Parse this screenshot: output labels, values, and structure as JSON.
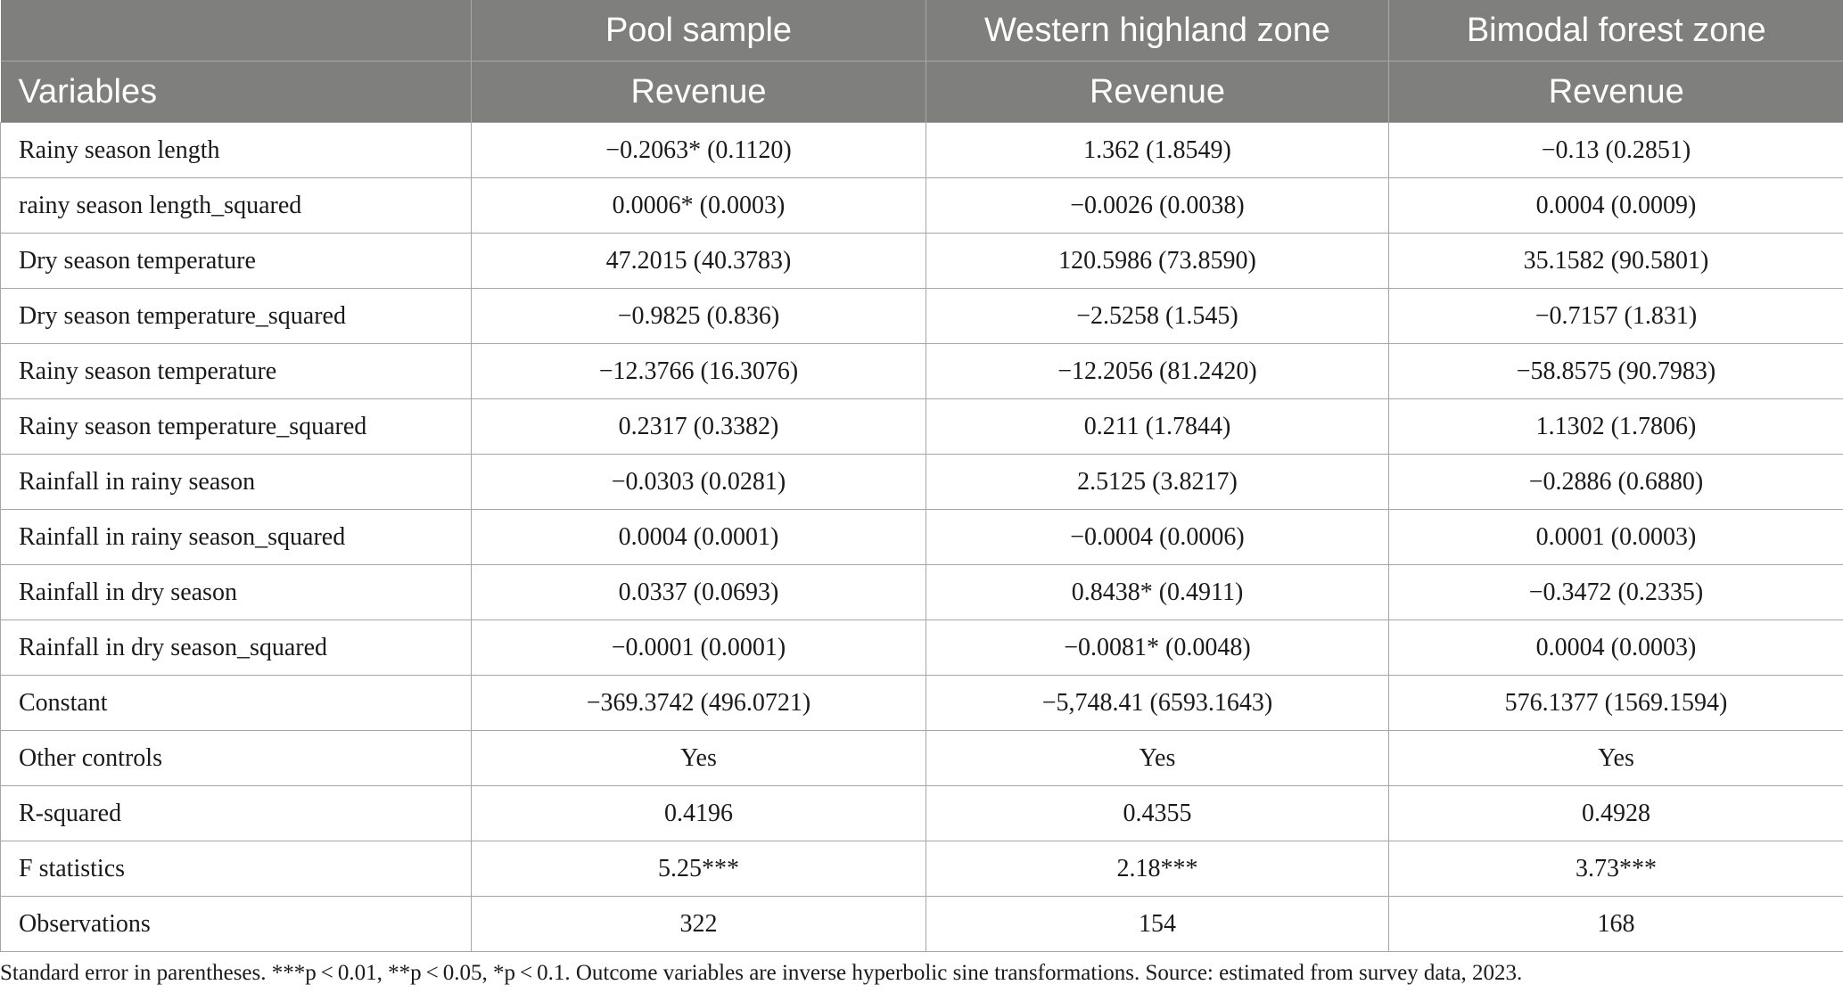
{
  "header": {
    "columns": [
      "",
      "Pool sample",
      "Western highland zone",
      "Bimodal forest zone"
    ],
    "subheader": [
      "Variables",
      "Revenue",
      "Revenue",
      "Revenue"
    ]
  },
  "rows": [
    {
      "variable": "Rainy season length",
      "values": [
        "−0.2063* (0.1120)",
        "1.362 (1.8549)",
        "−0.13 (0.2851)"
      ]
    },
    {
      "variable": "rainy season length_squared",
      "values": [
        "0.0006* (0.0003)",
        "−0.0026 (0.0038)",
        "0.0004 (0.0009)"
      ]
    },
    {
      "variable": "Dry season temperature",
      "values": [
        "47.2015 (40.3783)",
        "120.5986 (73.8590)",
        "35.1582 (90.5801)"
      ]
    },
    {
      "variable": "Dry season temperature_squared",
      "values": [
        "−0.9825 (0.836)",
        "−2.5258 (1.545)",
        "−0.7157 (1.831)"
      ]
    },
    {
      "variable": "Rainy season temperature",
      "values": [
        "−12.3766 (16.3076)",
        "−12.2056 (81.2420)",
        "−58.8575 (90.7983)"
      ]
    },
    {
      "variable": "Rainy season temperature_squared",
      "values": [
        "0.2317 (0.3382)",
        "0.211 (1.7844)",
        "1.1302 (1.7806)"
      ]
    },
    {
      "variable": "Rainfall in rainy season",
      "values": [
        "−0.0303 (0.0281)",
        "2.5125 (3.8217)",
        "−0.2886 (0.6880)"
      ]
    },
    {
      "variable": "Rainfall in rainy season_squared",
      "values": [
        "0.0004 (0.0001)",
        "−0.0004 (0.0006)",
        "0.0001 (0.0003)"
      ]
    },
    {
      "variable": "Rainfall in dry season",
      "values": [
        "0.0337 (0.0693)",
        "0.8438* (0.4911)",
        "−0.3472 (0.2335)"
      ]
    },
    {
      "variable": "Rainfall in dry season_squared",
      "values": [
        "−0.0001 (0.0001)",
        "−0.0081* (0.0048)",
        "0.0004 (0.0003)"
      ]
    },
    {
      "variable": "Constant",
      "values": [
        "−369.3742 (496.0721)",
        "−5,748.41 (6593.1643)",
        "576.1377 (1569.1594)"
      ]
    },
    {
      "variable": "Other controls",
      "values": [
        "Yes",
        "Yes",
        "Yes"
      ]
    },
    {
      "variable": "R-squared",
      "values": [
        "0.4196",
        "0.4355",
        "0.4928"
      ]
    },
    {
      "variable": "F statistics",
      "values": [
        "5.25***",
        "2.18***",
        "3.73***"
      ]
    },
    {
      "variable": "Observations",
      "values": [
        "322",
        "154",
        "168"
      ]
    }
  ],
  "footnote": "Standard error in parentheses. ***p < 0.01, **p < 0.05, *p < 0.1. Outcome variables are inverse hyperbolic sine transformations. Source: estimated from survey data, 2023."
}
